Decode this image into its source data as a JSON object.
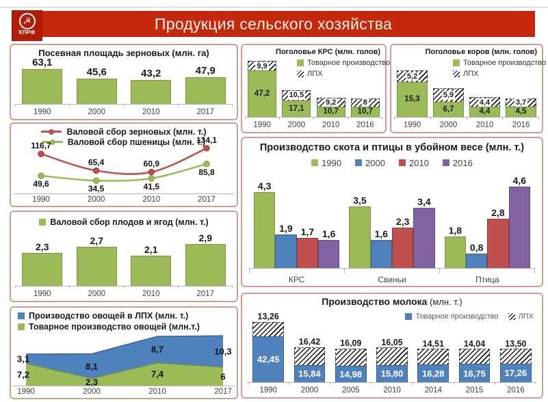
{
  "header": {
    "title": "Продукция сельского хозяйства",
    "logo_text": "КПРФ",
    "logo_symbol": "☭"
  },
  "colors": {
    "green": "#9bbb59",
    "green_dark": "#77933c",
    "blue": "#4f81bd",
    "blue_dark": "#37608f",
    "red": "#c0504d",
    "red_dark": "#953735",
    "purple": "#8064a2",
    "purple_dark": "#5f497a",
    "banner": "#c5290d",
    "logo": "#b21c07",
    "panel_border": "#d39b96",
    "axis": "#b3b3b3",
    "text_axis": "#3f3f3f"
  },
  "chart_data": [
    {
      "id": "sown-area",
      "type": "bar",
      "title": "Посевная площадь зерновых (млн. га)",
      "categories": [
        "1990",
        "2000",
        "2010",
        "2017"
      ],
      "values": [
        63.1,
        45.6,
        43.2,
        47.9
      ],
      "labels": [
        "63,1",
        "45,6",
        "43,2",
        "47,9"
      ],
      "color": "green",
      "ylim": [
        0,
        80
      ],
      "label_size": 15,
      "bar_width": "74%"
    },
    {
      "id": "grain-harvest",
      "type": "line",
      "categories": [
        "1990",
        "2000",
        "2010",
        "2017"
      ],
      "ylim": [
        -5,
        138
      ],
      "series": [
        {
          "name": "Валовой сбор зерновых (млн. т.)",
          "color": "red",
          "values": [
            116.7,
            65.4,
            60.9,
            134.1
          ],
          "labels": [
            "116,7",
            "65,4",
            "60,9",
            "134,1"
          ],
          "label_pos": "above"
        },
        {
          "name": "Валовой сбор пшеницы (млн. т.)",
          "color": "green",
          "values": [
            49.6,
            34.5,
            41.5,
            85.8
          ],
          "labels": [
            "49,6",
            "34,5",
            "41,5",
            "85,8"
          ],
          "label_pos": "below"
        }
      ]
    },
    {
      "id": "fruit-berries",
      "type": "bar",
      "legend": "Валовой сбор плодов и ягод (млн. т.)",
      "categories": [
        "1990",
        "2000",
        "2010",
        "2017"
      ],
      "values": [
        2.3,
        2.7,
        2.1,
        2.9
      ],
      "labels": [
        "2,3",
        "2,7",
        "2,1",
        "2,9"
      ],
      "color": "green",
      "ylim": [
        0,
        4
      ],
      "label_size": 14,
      "bar_width": "74%"
    },
    {
      "id": "vegetables",
      "type": "stacked-area",
      "categories": [
        "1990",
        "2000",
        "2010",
        "2017"
      ],
      "ylim": [
        0,
        17
      ],
      "series": [
        {
          "name": "Производство овощей в ЛПХ (млн. т.)",
          "color": "blue",
          "values": [
            3.1,
            8.1,
            8.7,
            10.3
          ],
          "labels": [
            "3,1",
            "8,1",
            "8,7",
            "10,3"
          ]
        },
        {
          "name": "Товарное производство овощей (млн.т.)",
          "color": "green",
          "values": [
            7.2,
            2.3,
            7.4,
            6
          ],
          "labels": [
            "7,2",
            "2,3",
            "7,4",
            "6"
          ]
        }
      ]
    },
    {
      "id": "cattle-total",
      "type": "stacked-bar",
      "title": "Поголовье КРС (млн. голов)",
      "legend": [
        "Товарное производство",
        "ЛПХ"
      ],
      "categories": [
        "1990",
        "2000",
        "2010",
        "2016"
      ],
      "base": {
        "color": "green",
        "values": [
          47.2,
          17.1,
          10.7,
          10.7
        ],
        "labels": [
          "47,2",
          "17,1",
          "10,7",
          "10,7"
        ],
        "label_size": 11.5
      },
      "hatch": {
        "values": [
          9.9,
          10.5,
          9.2,
          8
        ],
        "labels": [
          "9,9",
          "10,5",
          "9,2",
          "8"
        ],
        "label_mode": "inside",
        "label_size": 11
      },
      "ylim": [
        0,
        72
      ],
      "bar_width": "84%"
    },
    {
      "id": "cows",
      "type": "stacked-bar",
      "title": "Поголовье коров (млн. голов)",
      "legend": [
        "Товарное производство",
        "ЛПХ"
      ],
      "categories": [
        "1990",
        "2000",
        "2010",
        "2016"
      ],
      "base": {
        "color": "green",
        "values": [
          15.3,
          6.7,
          4.4,
          4.5
        ],
        "labels": [
          "15,3",
          "6,7",
          "4,4",
          "4,5"
        ],
        "label_size": 11.5
      },
      "hatch": {
        "values": [
          5.2,
          5.9,
          4.4,
          3.7
        ],
        "labels": [
          "5,2",
          "5,9",
          "4,4",
          "3,7"
        ],
        "label_mode": "inside",
        "label_size": 11
      },
      "ylim": [
        0,
        31
      ],
      "bar_width": "84%"
    },
    {
      "id": "meat",
      "type": "grouped-bar",
      "title": "Производство скота и птицы в убойном весе (млн. т.)",
      "categories": [
        "КРС",
        "Свиньи",
        "Птица"
      ],
      "series": [
        {
          "name": "1990",
          "color": "green",
          "values": [
            4.3,
            3.5,
            1.8
          ],
          "labels": [
            "4,3",
            "3,5",
            "1,8"
          ]
        },
        {
          "name": "2000",
          "color": "blue",
          "values": [
            1.9,
            1.6,
            0.8
          ],
          "labels": [
            "1,9",
            "1,6",
            "0,8"
          ]
        },
        {
          "name": "2010",
          "color": "red",
          "values": [
            1.7,
            2.3,
            2.8
          ],
          "labels": [
            "1,7",
            "2,3",
            "2,8"
          ]
        },
        {
          "name": "2016",
          "color": "purple",
          "values": [
            1.6,
            3.4,
            4.6
          ],
          "labels": [
            "1,6",
            "3,4",
            "4,6"
          ]
        }
      ],
      "ylim": [
        0,
        5.5
      ],
      "label_size": 14
    },
    {
      "id": "milk",
      "type": "stacked-bar",
      "title_bold": "Производство молока",
      "title_suffix": " (млн. т.)",
      "legend": [
        "Товарное производство",
        "ЛПХ"
      ],
      "categories": [
        "1990",
        "2000",
        "2005",
        "2010",
        "2014",
        "2015",
        "2016"
      ],
      "base": {
        "color": "blue",
        "values": [
          42.45,
          15.84,
          14.98,
          15.8,
          16.28,
          16.75,
          17.26
        ],
        "labels": [
          "42,45",
          "15,84",
          "14,98",
          "15,80",
          "16,28",
          "16,75",
          "17,26"
        ],
        "label_color": "#ffffff",
        "label_size": 13
      },
      "hatch": {
        "values": [
          13.26,
          16.42,
          16.09,
          16.05,
          14.51,
          14.04,
          13.5
        ],
        "labels": [
          "13,26",
          "16,42",
          "16,09",
          "16,05",
          "14,51",
          "14,04",
          "13,50"
        ],
        "label_mode": "above",
        "label_size": 12.5
      },
      "ylim": [
        0,
        68
      ],
      "bar_width": "76%"
    }
  ]
}
